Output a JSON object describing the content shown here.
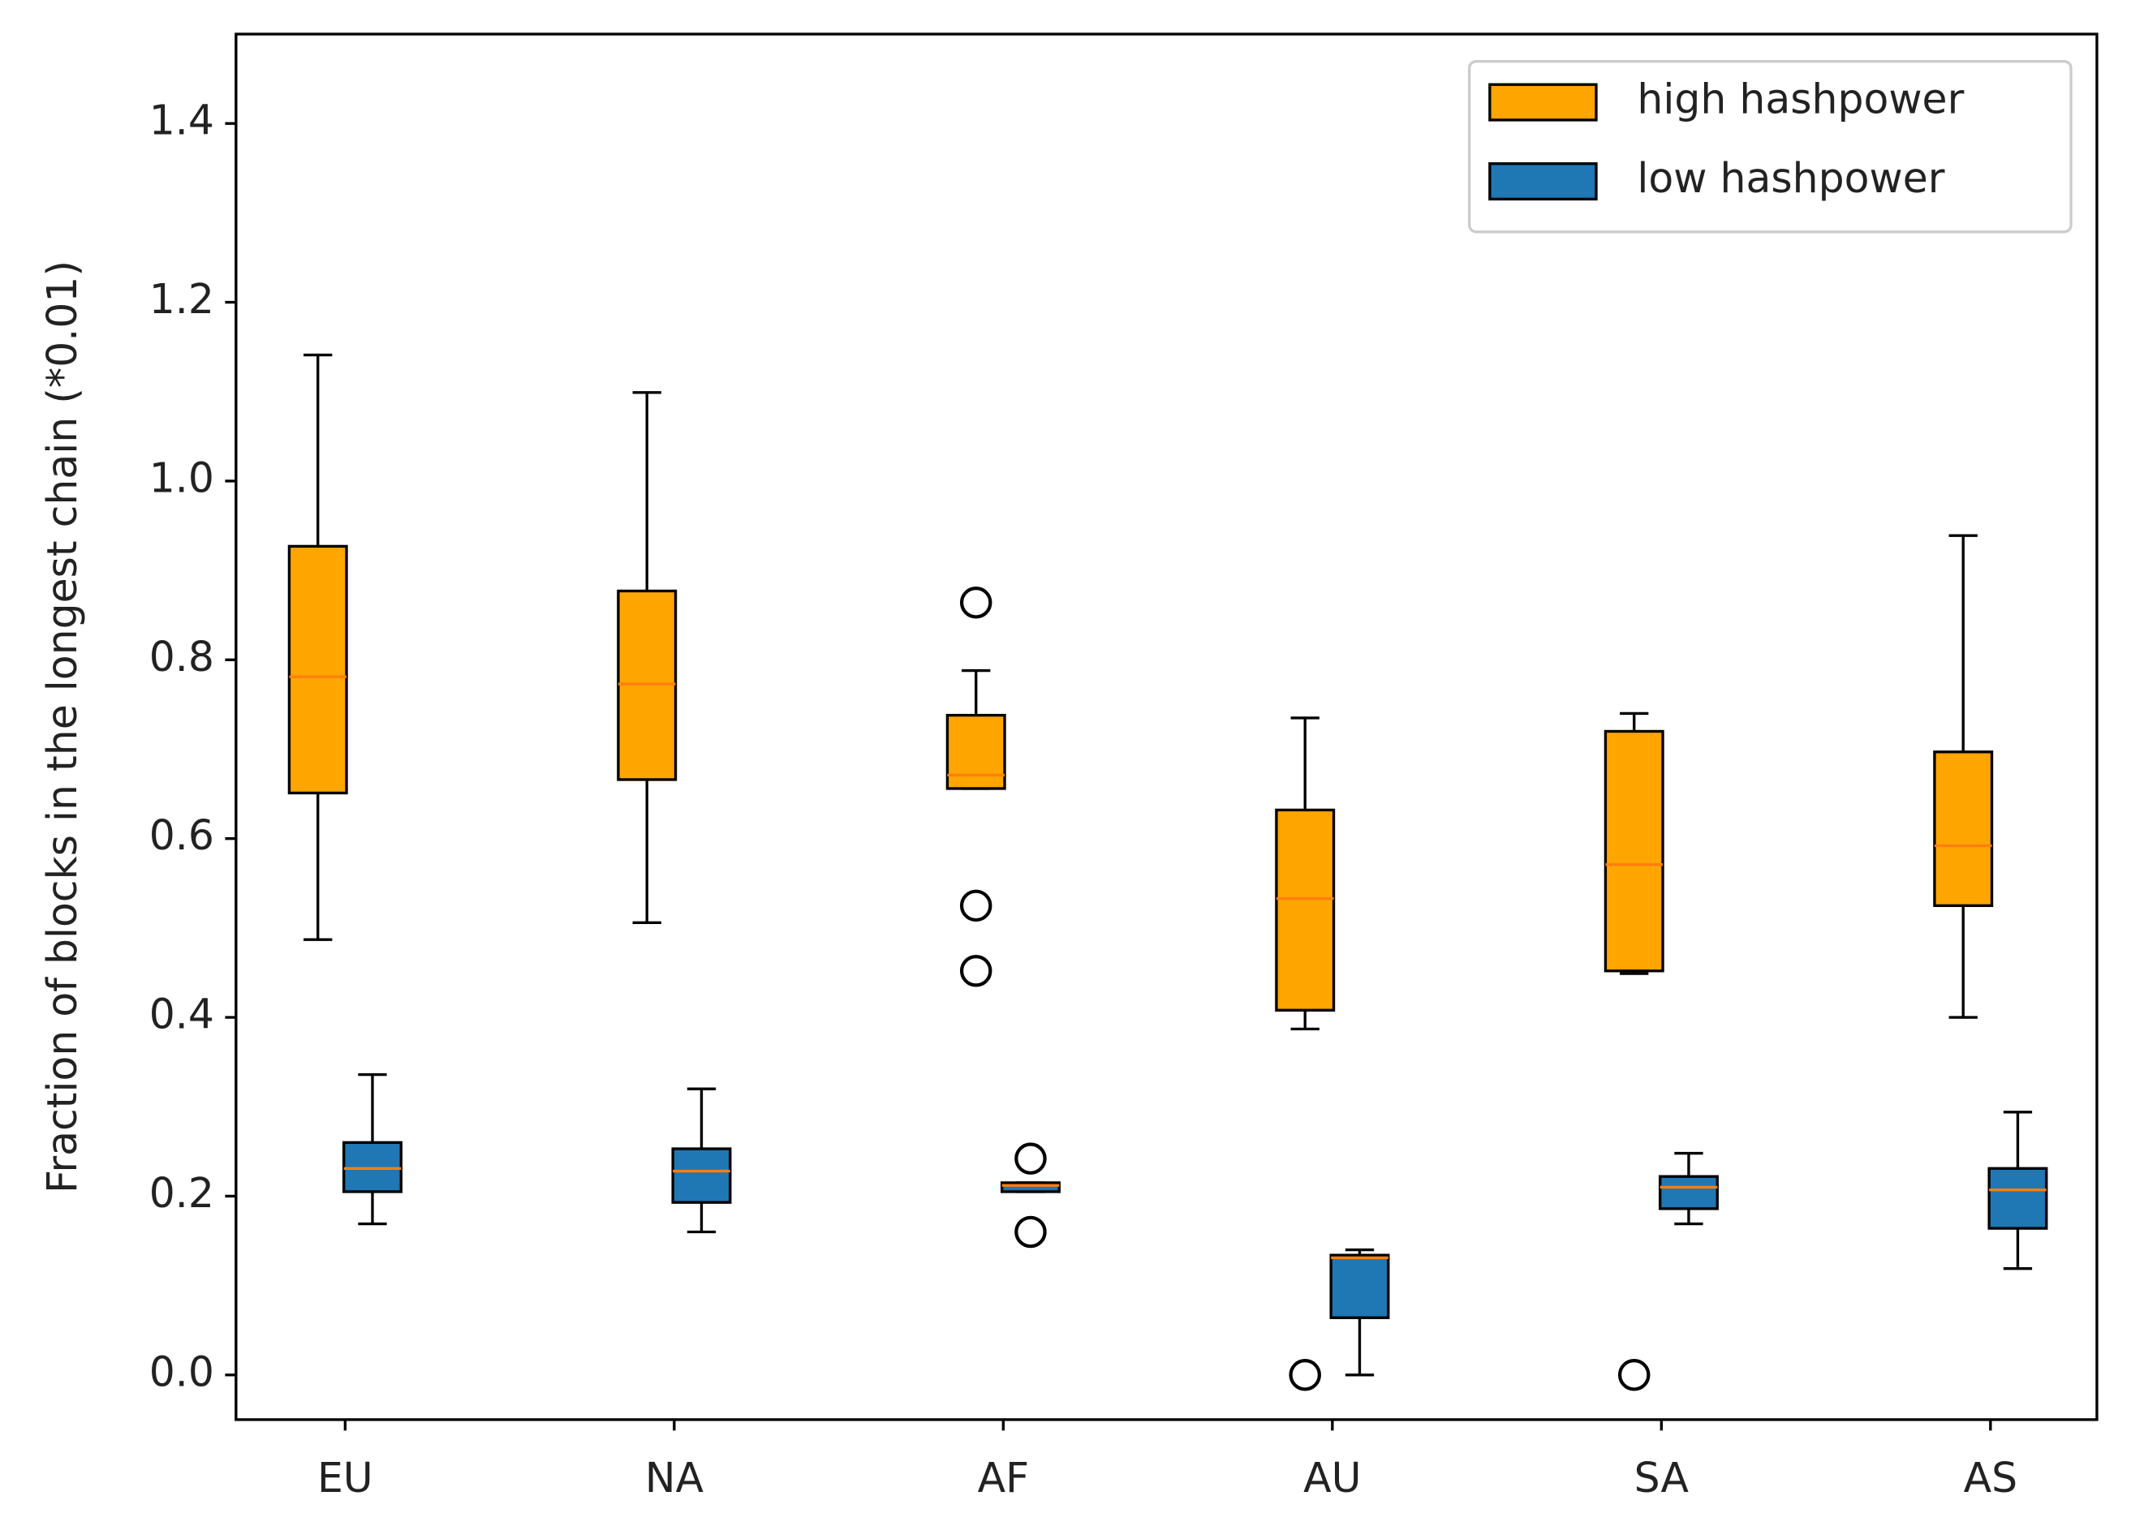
{
  "chart_data": {
    "type": "box",
    "y_label": "Fraction of blocks in the longest chain (*0.01)",
    "categories": [
      "EU",
      "NA",
      "AF",
      "AU",
      "SA",
      "AS"
    ],
    "ylim": [
      -0.05,
      1.5
    ],
    "yticks": [
      {
        "value": 0,
        "label": "0.0"
      },
      0.2,
      0.4,
      0.6,
      0.8,
      {
        "value": 1,
        "label": "1.0"
      },
      1.2,
      1.4
    ],
    "legend": "upper right",
    "median_color": "#ff7f0e",
    "series": [
      {
        "name": "high hashpower",
        "color": "#ffa500",
        "whislo": [
          0.487,
          0.506,
          0.656,
          0.387,
          0.449,
          0.4
        ],
        "q1": [
          0.651,
          0.666,
          0.656,
          0.408,
          0.452,
          0.525
        ],
        "median": [
          0.781,
          0.773,
          0.671,
          0.533,
          0.571,
          0.592
        ],
        "q3": [
          0.927,
          0.877,
          0.738,
          0.632,
          0.72,
          0.697
        ],
        "whishi": [
          1.141,
          1.099,
          0.788,
          0.735,
          0.74,
          0.939
        ],
        "fliers": [
          [],
          [],
          [
            0.864,
            0.525,
            0.452
          ],
          [
            0
          ],
          [
            0
          ],
          []
        ]
      },
      {
        "name": "low hashpower",
        "color": "#1f77b4",
        "whislo": [
          0.169,
          0.16,
          0.205,
          0,
          0.169,
          0.119
        ],
        "q1": [
          0.205,
          0.193,
          0.205,
          0.064,
          0.186,
          0.164
        ],
        "median": [
          0.231,
          0.228,
          0.212,
          0.131,
          0.21,
          0.207
        ],
        "q3": [
          0.26,
          0.253,
          0.215,
          0.134,
          0.222,
          0.231
        ],
        "whishi": [
          0.336,
          0.32,
          0.215,
          0.14,
          0.248,
          0.294
        ],
        "fliers": [
          [],
          [],
          [
            0.242,
            0.16
          ],
          [],
          [],
          []
        ]
      }
    ]
  }
}
